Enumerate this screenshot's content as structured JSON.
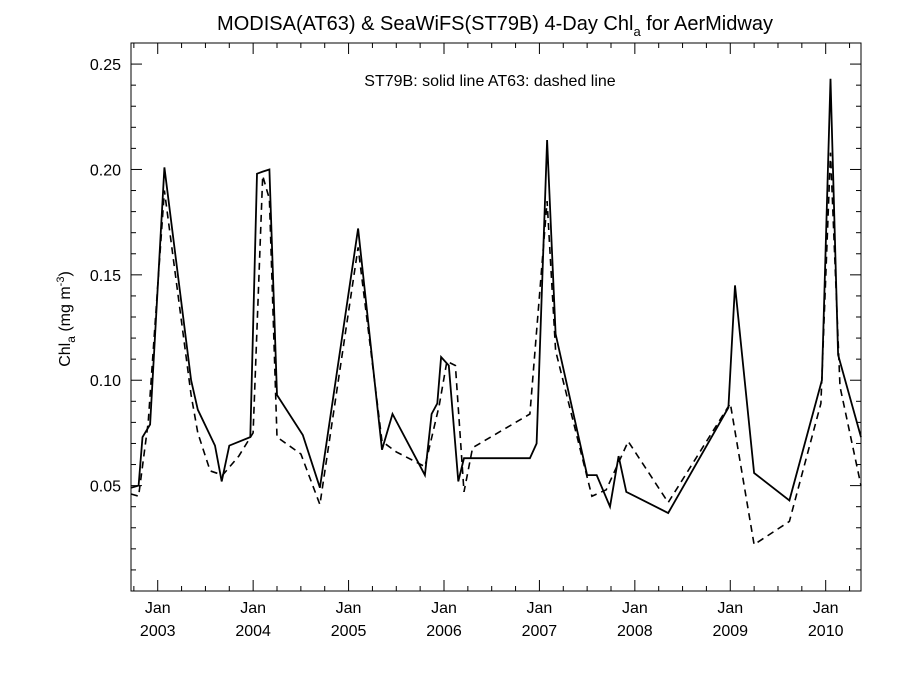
{
  "chart_data": {
    "type": "line",
    "title": "MODISA(AT63) & SeaWiFS(ST79B) 4-Day Chl",
    "title_subscript": "a",
    "title_suffix": " for AerMidway",
    "ylabel": "Chl",
    "ylabel_subscript": "a",
    "ylabel_units": " (mg m",
    "ylabel_units_sup": "-3",
    "ylabel_units_close": ")",
    "annotation": "ST79B: solid line   AT63: dashed line",
    "ylim": [
      0.0,
      0.26
    ],
    "xlim": [
      2002.72,
      2010.37
    ],
    "yticks": [
      {
        "value": 0.05,
        "label": "0.05"
      },
      {
        "value": 0.1,
        "label": "0.10"
      },
      {
        "value": 0.15,
        "label": "0.15"
      },
      {
        "value": 0.2,
        "label": "0.20"
      },
      {
        "value": 0.25,
        "label": "0.25"
      }
    ],
    "xticks": [
      {
        "value": 2003.0,
        "month": "Jan",
        "year": "2003"
      },
      {
        "value": 2004.0,
        "month": "Jan",
        "year": "2004"
      },
      {
        "value": 2005.0,
        "month": "Jan",
        "year": "2005"
      },
      {
        "value": 2006.0,
        "month": "Jan",
        "year": "2006"
      },
      {
        "value": 2007.0,
        "month": "Jan",
        "year": "2007"
      },
      {
        "value": 2008.0,
        "month": "Jan",
        "year": "2008"
      },
      {
        "value": 2009.0,
        "month": "Jan",
        "year": "2009"
      },
      {
        "value": 2010.0,
        "month": "Jan",
        "year": "2010"
      }
    ],
    "grid": false,
    "series": [
      {
        "name": "ST79B",
        "style": "solid",
        "color": "#000000",
        "x": [
          2002.72,
          2002.8,
          2002.84,
          2002.92,
          2003.07,
          2003.35,
          2003.42,
          2003.6,
          2003.67,
          2003.75,
          2003.97,
          2004.04,
          2004.1,
          2004.17,
          2004.25,
          2004.52,
          2004.7,
          2005.1,
          2005.35,
          2005.46,
          2005.8,
          2005.87,
          2005.93,
          2005.97,
          2006.05,
          2006.15,
          2006.21,
          2006.26,
          2006.9,
          2006.97,
          2007.08,
          2007.17,
          2007.5,
          2007.6,
          2007.74,
          2007.83,
          2007.91,
          2008.35,
          2008.98,
          2009.05,
          2009.25,
          2009.62,
          2009.96,
          2010.05,
          2010.13,
          2010.37
        ],
        "y": [
          0.049,
          0.05,
          0.073,
          0.079,
          0.201,
          0.1,
          0.086,
          0.069,
          0.052,
          0.069,
          0.073,
          0.198,
          0.199,
          0.2,
          0.093,
          0.074,
          0.049,
          0.172,
          0.067,
          0.084,
          0.055,
          0.084,
          0.089,
          0.111,
          0.107,
          0.052,
          0.063,
          0.063,
          0.063,
          0.07,
          0.214,
          0.122,
          0.055,
          0.055,
          0.04,
          0.064,
          0.047,
          0.037,
          0.087,
          0.145,
          0.056,
          0.043,
          0.1,
          0.243,
          0.112,
          0.073
        ]
      },
      {
        "name": "AT63",
        "style": "dashed",
        "color": "#000000",
        "x": [
          2002.72,
          2002.8,
          2002.9,
          2003.07,
          2003.35,
          2003.42,
          2003.55,
          2003.68,
          2003.85,
          2004.0,
          2004.1,
          2004.17,
          2004.25,
          2004.5,
          2004.7,
          2005.1,
          2005.35,
          2005.5,
          2005.8,
          2005.95,
          2006.03,
          2006.12,
          2006.21,
          2006.3,
          2006.9,
          2007.08,
          2007.17,
          2007.55,
          2007.7,
          2007.93,
          2008.35,
          2009.0,
          2009.25,
          2009.62,
          2009.95,
          2010.05,
          2010.15,
          2010.37
        ],
        "y": [
          0.046,
          0.045,
          0.08,
          0.19,
          0.093,
          0.075,
          0.057,
          0.055,
          0.064,
          0.075,
          0.197,
          0.186,
          0.073,
          0.065,
          0.041,
          0.163,
          0.071,
          0.066,
          0.059,
          0.088,
          0.109,
          0.107,
          0.047,
          0.068,
          0.084,
          0.185,
          0.114,
          0.045,
          0.048,
          0.071,
          0.042,
          0.089,
          0.022,
          0.033,
          0.089,
          0.208,
          0.097,
          0.05
        ]
      }
    ]
  }
}
